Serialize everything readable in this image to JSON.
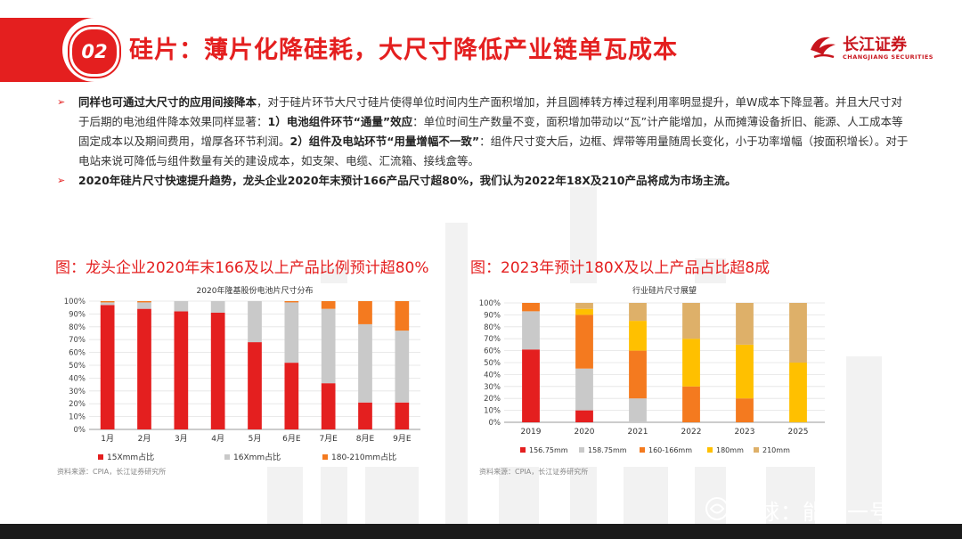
{
  "header": {
    "section_number": "02",
    "title": "硅片：薄片化降硅耗，大尺寸降低产业链单瓦成本",
    "logo_cn": "长江证券",
    "logo_en": "CHANGJIANG SECURITIES"
  },
  "body": {
    "p1_bold1": "同样也可通过大尺寸的应用间接降本",
    "p1_text1": "，对于硅片环节大尺寸硅片使得单位时间内生产面积增加，并且圆棒转方棒过程利用率明显提升，单W成本下降显著。并且大尺寸对于后期的电池组件降本效果同样显著：",
    "p1_bold2": "1）电池组件环节“通量”效应",
    "p1_text2": "：单位时间生产数量不变，面积增加带动以“瓦”计产能增加，从而摊薄设备折旧、能源、人工成本等固定成本以及期间费用，增厚各环节利润。",
    "p1_bold3": "2）组件及电站环节“用量增幅不一致”",
    "p1_text3": "：组件尺寸变大后，边框、焊带等用量随周长变化，小于功率增幅（按面积增长）。对于电站来说可降低与组件数量有关的建设成本，如支架、电缆、汇流箱、接线盒等。",
    "p2_bold": "2020年硅片尺寸快速提升趋势，龙头企业2020年末预计166产品尺寸超80%，我们认为2022年18X及210产品将成为市场主流。"
  },
  "figures": {
    "left_title": "图：龙头企业2020年末166及以上产品比例预计超80%",
    "right_title": "图：2023年预计180X及以上产品占比超8成",
    "left_source": "资料来源：CPIA，长江证券研究所",
    "right_source": "资料来源：CPIA，长江证券研究所"
  },
  "watermark": "雪球：能源一号",
  "colors": {
    "brand_red": "#e41f1f",
    "left_series": [
      "#e41f1f",
      "#c9c9c9",
      "#f47a1f"
    ],
    "right_series": [
      "#e41f1f",
      "#c9c9c9",
      "#f47a1f",
      "#ffc000",
      "#deb069"
    ]
  },
  "chart_data": [
    {
      "type": "bar",
      "stacked": true,
      "title": "2020年隆基股份电池片尺寸分布",
      "categories": [
        "1月",
        "2月",
        "3月",
        "4月",
        "5月",
        "6月E",
        "7月E",
        "8月E",
        "9月E"
      ],
      "series": [
        {
          "name": "15Xmm占比",
          "values": [
            97,
            94,
            92,
            91,
            68,
            52,
            36,
            21,
            21
          ]
        },
        {
          "name": "16Xmm占比",
          "values": [
            2,
            5,
            8,
            9,
            32,
            47,
            58,
            61,
            56
          ]
        },
        {
          "name": "180-210mm占比",
          "values": [
            1,
            1,
            0,
            0,
            0,
            1,
            6,
            18,
            23
          ]
        }
      ],
      "ylim": [
        0,
        100
      ],
      "yticks": [
        "0%",
        "10%",
        "20%",
        "30%",
        "40%",
        "50%",
        "60%",
        "70%",
        "80%",
        "90%",
        "100%"
      ],
      "legend": "bottom"
    },
    {
      "type": "bar",
      "stacked": true,
      "title": "行业硅片尺寸展望",
      "categories": [
        "2019",
        "2020",
        "2021",
        "2022",
        "2023",
        "2025"
      ],
      "series": [
        {
          "name": "156.75mm",
          "values": [
            61,
            10,
            0,
            0,
            0,
            0
          ]
        },
        {
          "name": "158.75mm",
          "values": [
            32,
            35,
            20,
            0,
            0,
            0
          ]
        },
        {
          "name": "160-166mm",
          "values": [
            7,
            45,
            40,
            30,
            20,
            0
          ]
        },
        {
          "name": "180mm",
          "values": [
            0,
            5,
            25,
            40,
            45,
            50
          ]
        },
        {
          "name": "210mm",
          "values": [
            0,
            5,
            15,
            30,
            35,
            50
          ]
        }
      ],
      "ylim": [
        0,
        100
      ],
      "yticks": [
        "0%",
        "10%",
        "20%",
        "30%",
        "40%",
        "50%",
        "60%",
        "70%",
        "80%",
        "90%",
        "100%"
      ],
      "legend": "bottom"
    }
  ]
}
